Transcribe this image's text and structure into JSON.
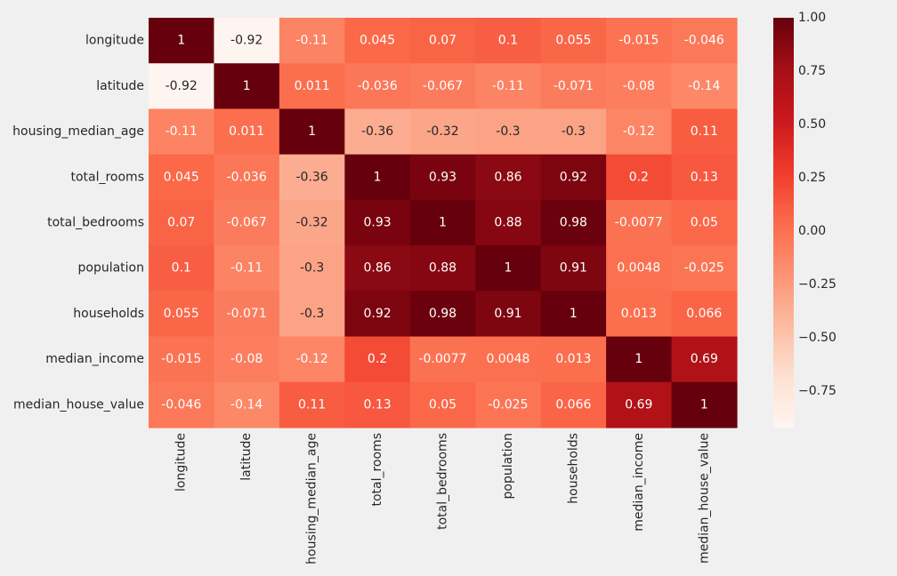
{
  "chart_data": {
    "type": "heatmap",
    "title": "",
    "xlabel": "",
    "ylabel": "",
    "colormap": "Reds",
    "vmin": -0.92,
    "vmax": 1.0,
    "row_labels": [
      "longitude",
      "latitude",
      "housing_median_age",
      "total_rooms",
      "total_bedrooms",
      "population",
      "households",
      "median_income",
      "median_house_value"
    ],
    "col_labels": [
      "longitude",
      "latitude",
      "housing_median_age",
      "total_rooms",
      "total_bedrooms",
      "population",
      "households",
      "median_income",
      "median_house_value"
    ],
    "values": [
      [
        1,
        -0.92,
        -0.11,
        0.045,
        0.07,
        0.1,
        0.055,
        -0.015,
        -0.046
      ],
      [
        -0.92,
        1,
        0.011,
        -0.036,
        -0.067,
        -0.11,
        -0.071,
        -0.08,
        -0.14
      ],
      [
        -0.11,
        0.011,
        1,
        -0.36,
        -0.32,
        -0.3,
        -0.3,
        -0.12,
        0.11
      ],
      [
        0.045,
        -0.036,
        -0.36,
        1,
        0.93,
        0.86,
        0.92,
        0.2,
        0.13
      ],
      [
        0.07,
        -0.067,
        -0.32,
        0.93,
        1,
        0.88,
        0.98,
        -0.0077,
        0.05
      ],
      [
        0.1,
        -0.11,
        -0.3,
        0.86,
        0.88,
        1,
        0.91,
        0.0048,
        -0.025
      ],
      [
        0.055,
        -0.071,
        -0.3,
        0.92,
        0.98,
        0.91,
        1,
        0.013,
        0.066
      ],
      [
        -0.015,
        -0.08,
        -0.12,
        0.2,
        -0.0077,
        0.0048,
        0.013,
        1,
        0.69
      ],
      [
        -0.046,
        -0.14,
        0.11,
        0.13,
        0.05,
        -0.025,
        0.066,
        0.69,
        1
      ]
    ],
    "cell_text": [
      [
        "1",
        "-0.92",
        "-0.11",
        "0.045",
        "0.07",
        "0.1",
        "0.055",
        "-0.015",
        "-0.046"
      ],
      [
        "-0.92",
        "1",
        "0.011",
        "-0.036",
        "-0.067",
        "-0.11",
        "-0.071",
        "-0.08",
        "-0.14"
      ],
      [
        "-0.11",
        "0.011",
        "1",
        "-0.36",
        "-0.32",
        "-0.3",
        "-0.3",
        "-0.12",
        "0.11"
      ],
      [
        "0.045",
        "-0.036",
        "-0.36",
        "1",
        "0.93",
        "0.86",
        "0.92",
        "0.2",
        "0.13"
      ],
      [
        "0.07",
        "-0.067",
        "-0.32",
        "0.93",
        "1",
        "0.88",
        "0.98",
        "-0.0077",
        "0.05"
      ],
      [
        "0.1",
        "-0.11",
        "-0.3",
        "0.86",
        "0.88",
        "1",
        "0.91",
        "0.0048",
        "-0.025"
      ],
      [
        "0.055",
        "-0.071",
        "-0.3",
        "0.92",
        "0.98",
        "0.91",
        "1",
        "0.013",
        "0.066"
      ],
      [
        "-0.015",
        "-0.08",
        "-0.12",
        "0.2",
        "-0.0077",
        "0.0048",
        "0.013",
        "1",
        "0.69"
      ],
      [
        "-0.046",
        "-0.14",
        "0.11",
        "0.13",
        "0.05",
        "-0.025",
        "0.066",
        "0.69",
        "1"
      ]
    ],
    "colorbar": {
      "ticks": [
        1.0,
        0.75,
        0.5,
        0.25,
        0.0,
        -0.25,
        -0.5,
        -0.75
      ],
      "tick_labels": [
        "1.00",
        "0.75",
        "0.50",
        "0.25",
        "0.00",
        "−0.25",
        "−0.50",
        "−0.75"
      ]
    }
  },
  "colors": {
    "background": "#f0f0f0",
    "text_dark": "#262626",
    "text_light": "#ffffff",
    "scale": [
      "#fff5f0",
      "#fee0d2",
      "#fcbba1",
      "#fc9272",
      "#fb6a4a",
      "#ef3b2c",
      "#cb181d",
      "#a50f15",
      "#67000d"
    ]
  }
}
